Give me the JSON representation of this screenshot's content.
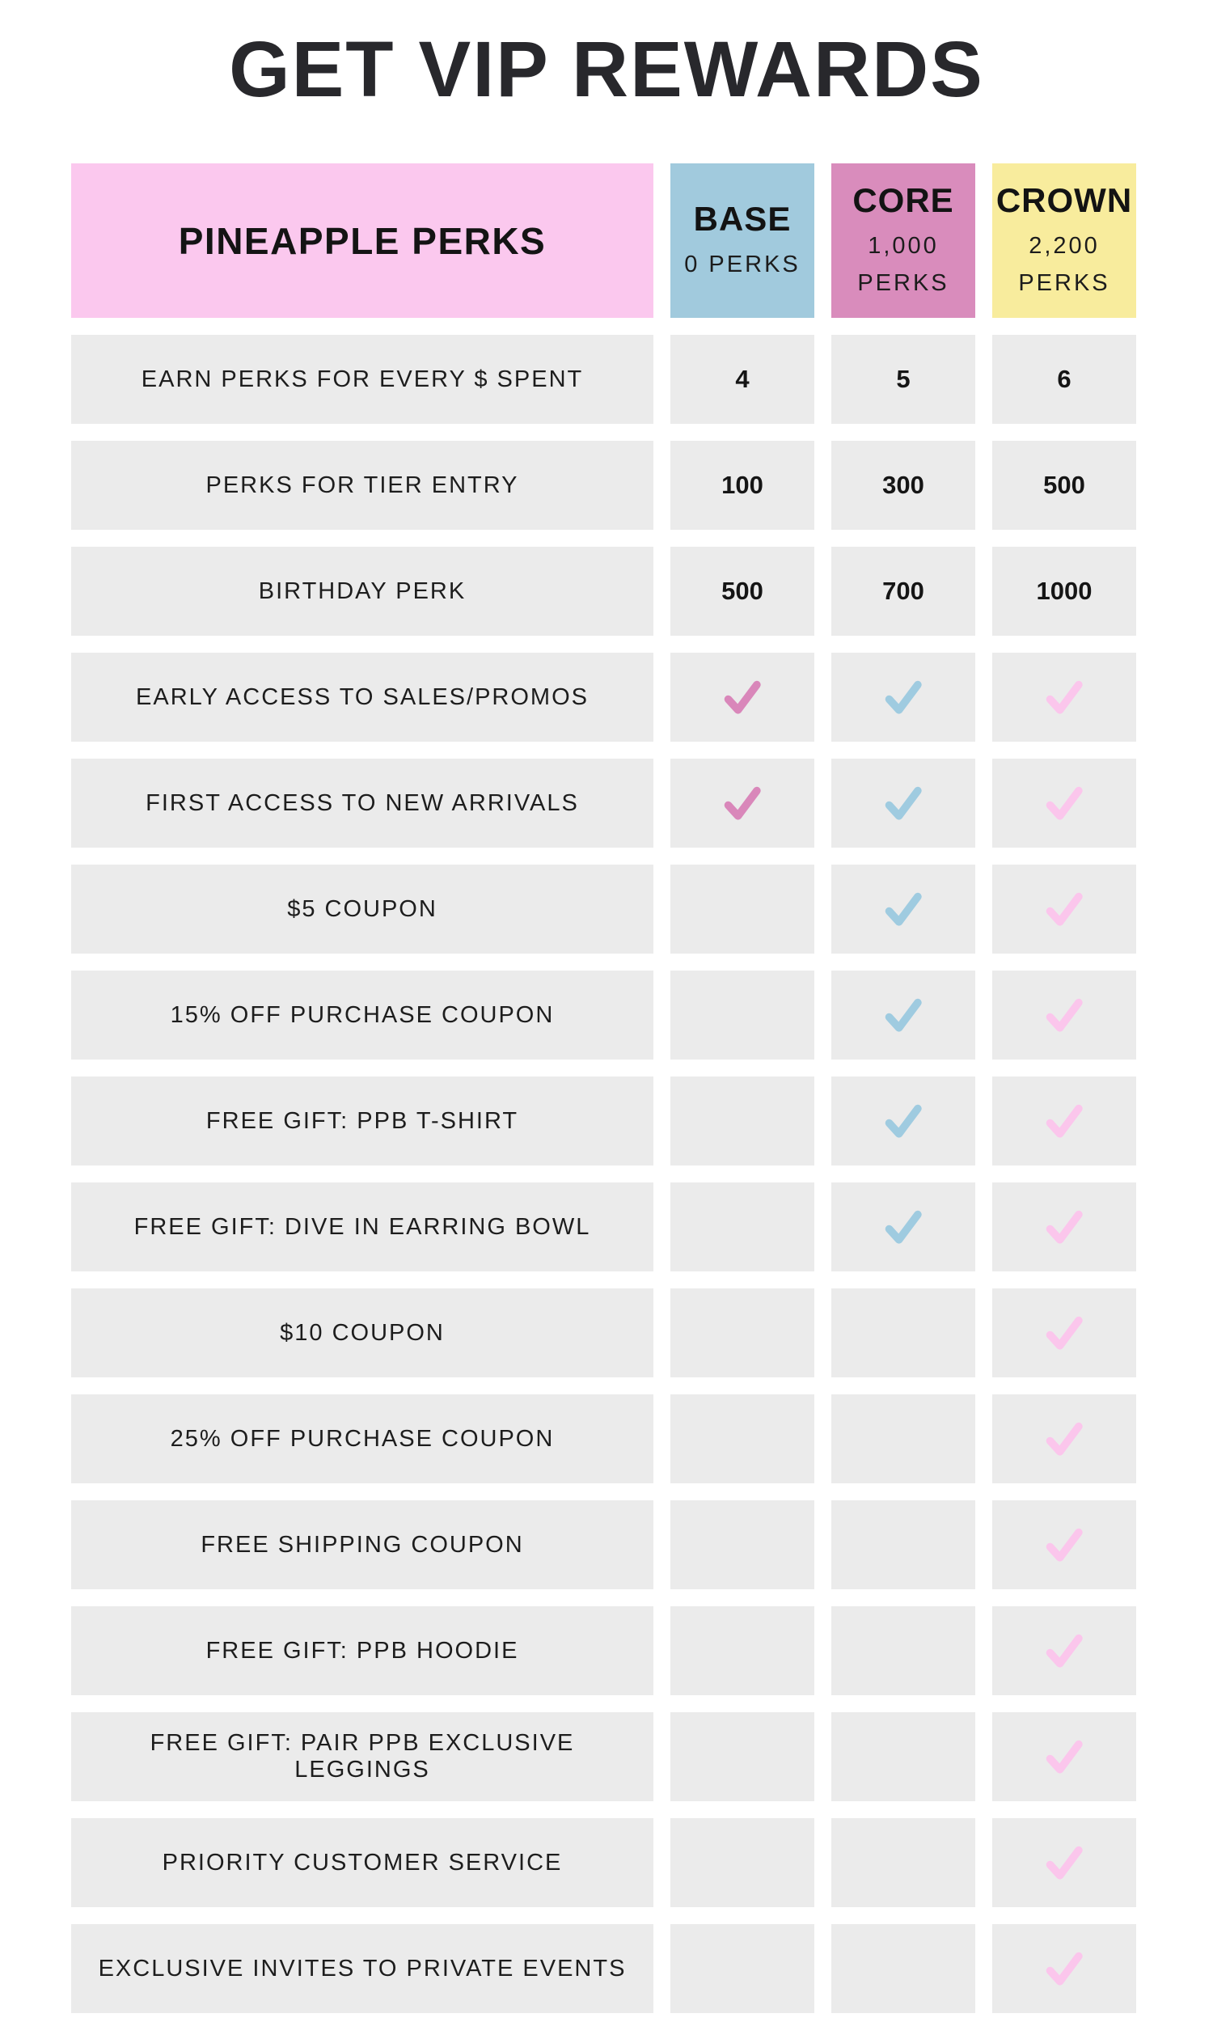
{
  "title": "GET VIP REWARDS",
  "table": {
    "corner_label": "PINEAPPLE PERKS",
    "tiers": [
      {
        "name": "BASE",
        "sub": [
          "0 PERKS"
        ],
        "color": "#a1cadd",
        "check_color": "#d987ba"
      },
      {
        "name": "CORE",
        "sub": [
          "1,000",
          "PERKS"
        ],
        "color": "#d98cbc",
        "check_color": "#9fcbe0"
      },
      {
        "name": "CROWN",
        "sub": [
          "2,200",
          "PERKS"
        ],
        "color": "#f8ec9d",
        "check_color": "#fbc6ec"
      }
    ],
    "rows": [
      {
        "label": "EARN PERKS FOR EVERY $ SPENT",
        "values": [
          "4",
          "5",
          "6"
        ]
      },
      {
        "label": "PERKS FOR TIER ENTRY",
        "values": [
          "100",
          "300",
          "500"
        ]
      },
      {
        "label": "BIRTHDAY PERK",
        "values": [
          "500",
          "700",
          "1000"
        ]
      },
      {
        "label": "EARLY ACCESS TO SALES/PROMOS",
        "values": [
          "check",
          "check",
          "check"
        ]
      },
      {
        "label": "FIRST ACCESS TO NEW ARRIVALS",
        "values": [
          "check",
          "check",
          "check"
        ]
      },
      {
        "label": "$5 COUPON",
        "values": [
          "",
          "check",
          "check"
        ]
      },
      {
        "label": "15% OFF PURCHASE COUPON",
        "values": [
          "",
          "check",
          "check"
        ]
      },
      {
        "label": "FREE GIFT: PPB T-SHIRT",
        "values": [
          "",
          "check",
          "check"
        ]
      },
      {
        "label": "FREE GIFT: DIVE IN EARRING BOWL",
        "values": [
          "",
          "check",
          "check"
        ]
      },
      {
        "label": "$10 COUPON",
        "values": [
          "",
          "",
          "check"
        ]
      },
      {
        "label": "25% OFF PURCHASE COUPON",
        "values": [
          "",
          "",
          "check"
        ]
      },
      {
        "label": "FREE SHIPPING COUPON",
        "values": [
          "",
          "",
          "check"
        ]
      },
      {
        "label": "FREE GIFT: PPB HOODIE",
        "values": [
          "",
          "",
          "check"
        ]
      },
      {
        "label": "FREE GIFT: PAIR PPB EXCLUSIVE LEGGINGS",
        "values": [
          "",
          "",
          "check"
        ]
      },
      {
        "label": "PRIORITY CUSTOMER SERVICE",
        "values": [
          "",
          "",
          "check"
        ]
      },
      {
        "label": "EXCLUSIVE INVITES TO PRIVATE EVENTS",
        "values": [
          "",
          "",
          "check"
        ]
      }
    ]
  },
  "colors": {
    "page_bg": "#ffffff",
    "row_bg": "#ebebeb",
    "corner_bg": "#fbc8ee",
    "title_text": "#28282c",
    "body_text": "#1d1d1d"
  },
  "chart_data": {
    "type": "table",
    "title": "GET VIP REWARDS",
    "columns": [
      "PINEAPPLE PERKS",
      "BASE (0 PERKS)",
      "CORE (1,000 PERKS)",
      "CROWN (2,200 PERKS)"
    ],
    "rows": [
      [
        "EARN PERKS FOR EVERY $ SPENT",
        4,
        5,
        6
      ],
      [
        "PERKS FOR TIER ENTRY",
        100,
        300,
        500
      ],
      [
        "BIRTHDAY PERK",
        500,
        700,
        1000
      ],
      [
        "EARLY ACCESS TO SALES/PROMOS",
        "✓",
        "✓",
        "✓"
      ],
      [
        "FIRST ACCESS TO NEW ARRIVALS",
        "✓",
        "✓",
        "✓"
      ],
      [
        "$5 COUPON",
        "",
        "✓",
        "✓"
      ],
      [
        "15% OFF PURCHASE COUPON",
        "",
        "✓",
        "✓"
      ],
      [
        "FREE GIFT: PPB T-SHIRT",
        "",
        "✓",
        "✓"
      ],
      [
        "FREE GIFT: DIVE IN EARRING BOWL",
        "",
        "✓",
        "✓"
      ],
      [
        "$10 COUPON",
        "",
        "",
        "✓"
      ],
      [
        "25% OFF PURCHASE COUPON",
        "",
        "",
        "✓"
      ],
      [
        "FREE SHIPPING COUPON",
        "",
        "",
        "✓"
      ],
      [
        "FREE GIFT: PPB HOODIE",
        "",
        "",
        "✓"
      ],
      [
        "FREE GIFT: PAIR PPB EXCLUSIVE LEGGINGS",
        "",
        "",
        "✓"
      ],
      [
        "PRIORITY CUSTOMER SERVICE",
        "",
        "",
        "✓"
      ],
      [
        "EXCLUSIVE INVITES TO PRIVATE EVENTS",
        "",
        "",
        "✓"
      ]
    ],
    "legend_position": "none",
    "grid": false
  }
}
